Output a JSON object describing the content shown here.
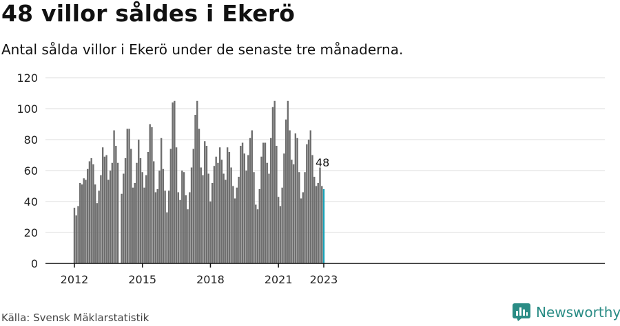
{
  "title": "48 villor såldes i Ekerö",
  "subtitle": "Antal sålda villor i Ekerö under de senaste tre månaderna.",
  "source": "Källa: Svensk Mäklarstatistik",
  "brand": {
    "name": "Newsworthy",
    "icon": "bar-chart-logo-icon"
  },
  "colors": {
    "bar": "#6e6e6e",
    "highlight": "#1aa3b8",
    "grid": "#dddddd",
    "axis": "#111111",
    "brand": "#2a8c85"
  },
  "chart_data": {
    "type": "bar",
    "x_start": "2012-01",
    "x_end": "2023-01",
    "x_ticks": [
      "2012",
      "2015",
      "2018",
      "2021",
      "2023"
    ],
    "ylim": [
      0,
      120
    ],
    "y_ticks": [
      0,
      20,
      40,
      60,
      80,
      100,
      120
    ],
    "grid": true,
    "values": [
      36,
      31,
      37,
      52,
      51,
      55,
      54,
      61,
      66,
      68,
      64,
      51,
      39,
      47,
      57,
      75,
      69,
      70,
      54,
      60,
      65,
      86,
      76,
      65,
      0,
      45,
      58,
      68,
      87,
      87,
      74,
      49,
      52,
      65,
      80,
      68,
      59,
      49,
      57,
      72,
      90,
      88,
      66,
      46,
      48,
      60,
      81,
      61,
      47,
      33,
      47,
      74,
      104,
      105,
      75,
      46,
      41,
      60,
      59,
      44,
      35,
      46,
      62,
      74,
      96,
      105,
      87,
      62,
      57,
      79,
      76,
      58,
      40,
      52,
      63,
      69,
      65,
      75,
      67,
      58,
      54,
      75,
      72,
      62,
      50,
      42,
      49,
      56,
      76,
      78,
      71,
      60,
      70,
      81,
      86,
      59,
      38,
      35,
      48,
      69,
      78,
      78,
      65,
      58,
      81,
      101,
      105,
      76,
      43,
      37,
      49,
      71,
      93,
      105,
      86,
      67,
      64,
      84,
      81,
      59,
      42,
      46,
      59,
      77,
      80,
      86,
      70,
      56,
      50,
      52,
      62,
      50,
      48
    ],
    "highlight_label": "48"
  }
}
